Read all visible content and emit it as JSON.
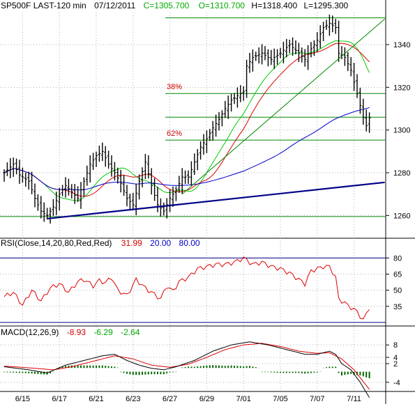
{
  "colors": {
    "price_bar": "#000000",
    "ma_fast": "#00cc00",
    "ma_mid": "#dd0000",
    "ma_slow": "#0000cc",
    "trend_up": "#000088",
    "fib_line": "#008800",
    "grid": "#b0b0b0",
    "rsi_line": "#dd0000",
    "rsi_ref": "#000088",
    "macd_line": "#000000",
    "macd_signal": "#dd0000",
    "macd_hist": "#006600",
    "header_c": "#00aa00",
    "header_o": "#00aa00",
    "header_rsi_val": "#cc0000",
    "header_rsi_ref": "#0000cc",
    "header_macd_neg": "#cc0000"
  },
  "header": {
    "symbol_label": "SP500F LAST-120 min",
    "date": "07/12/2011",
    "close_label": "C=1305.700",
    "open_label": "O=1310.700",
    "high_label": "H=1318.400",
    "low_label": "L=1295.300"
  },
  "chart_data": [
    {
      "type": "bar",
      "panel": "price",
      "title": "",
      "ylim": [
        1250,
        1355
      ],
      "yticks": [
        "1340",
        "1320",
        "1300",
        "1280",
        "1260"
      ],
      "ytick_values": [
        1340,
        1320,
        1300,
        1280,
        1260
      ],
      "xticks": [
        "6/15",
        "6/17",
        "6/21",
        "6/23",
        "6/27",
        "6/29",
        "7/01",
        "7/05",
        "7/07",
        "7/11"
      ],
      "xtick_index": [
        6,
        18,
        30,
        42,
        54,
        66,
        78,
        90,
        102,
        114
      ],
      "bar_count": 120,
      "anchors_close": [
        [
          0,
          1280
        ],
        [
          3,
          1284
        ],
        [
          5,
          1279
        ],
        [
          8,
          1276
        ],
        [
          10,
          1268
        ],
        [
          12,
          1262
        ],
        [
          14,
          1260
        ],
        [
          16,
          1264
        ],
        [
          18,
          1270
        ],
        [
          20,
          1274
        ],
        [
          22,
          1271
        ],
        [
          24,
          1268
        ],
        [
          26,
          1276
        ],
        [
          28,
          1284
        ],
        [
          30,
          1288
        ],
        [
          32,
          1290
        ],
        [
          34,
          1284
        ],
        [
          36,
          1280
        ],
        [
          38,
          1275
        ],
        [
          40,
          1268
        ],
        [
          42,
          1265
        ],
        [
          44,
          1276
        ],
        [
          46,
          1285
        ],
        [
          48,
          1274
        ],
        [
          50,
          1265
        ],
        [
          52,
          1262
        ],
        [
          54,
          1268
        ],
        [
          56,
          1272
        ],
        [
          58,
          1278
        ],
        [
          60,
          1278
        ],
        [
          62,
          1285
        ],
        [
          64,
          1292
        ],
        [
          66,
          1296
        ],
        [
          68,
          1301
        ],
        [
          70,
          1305
        ],
        [
          72,
          1310
        ],
        [
          74,
          1314
        ],
        [
          76,
          1316
        ],
        [
          78,
          1318
        ],
        [
          79,
          1330
        ],
        [
          81,
          1334
        ],
        [
          84,
          1336
        ],
        [
          87,
          1333
        ],
        [
          90,
          1336
        ],
        [
          93,
          1340
        ],
        [
          96,
          1336
        ],
        [
          98,
          1333
        ],
        [
          100,
          1338
        ],
        [
          102,
          1342
        ],
        [
          104,
          1348
        ],
        [
          106,
          1350
        ],
        [
          107,
          1349
        ],
        [
          108,
          1348
        ],
        [
          109,
          1336
        ],
        [
          111,
          1334
        ],
        [
          113,
          1328
        ],
        [
          115,
          1317
        ],
        [
          117,
          1306
        ],
        [
          118,
          1302
        ],
        [
          119,
          1305.7
        ]
      ],
      "ma_periods": [
        14,
        20,
        80
      ],
      "trendline": {
        "start": [
          14,
          1258.5
        ],
        "end": [
          124,
          1275.5
        ]
      },
      "fib_levels": [
        {
          "label": "",
          "value": 1352.5
        },
        {
          "label": "38%",
          "value": 1317.1
        },
        {
          "label": "",
          "value": 1306.0
        },
        {
          "label": "62%",
          "value": 1295.3
        },
        {
          "label": "",
          "value": 1259.5
        }
      ]
    },
    {
      "type": "line",
      "panel": "rsi",
      "title": "RSI(Close,14,20,80,Red,Red)",
      "values_header": [
        "31.99",
        "20.00",
        "80.00"
      ],
      "ylim": [
        18,
        88
      ],
      "yticks": [
        "80",
        "65",
        "50",
        "35"
      ],
      "ytick_values": [
        80,
        65,
        50,
        35
      ],
      "ref_lines": [
        80,
        20
      ],
      "anchors": [
        [
          0,
          44
        ],
        [
          3,
          48
        ],
        [
          6,
          36
        ],
        [
          9,
          50
        ],
        [
          12,
          40
        ],
        [
          15,
          52
        ],
        [
          18,
          56
        ],
        [
          21,
          48
        ],
        [
          24,
          58
        ],
        [
          26,
          60
        ],
        [
          29,
          54
        ],
        [
          31,
          59
        ],
        [
          33,
          57
        ],
        [
          35,
          62
        ],
        [
          37,
          50
        ],
        [
          40,
          45
        ],
        [
          43,
          60
        ],
        [
          46,
          52
        ],
        [
          49,
          46
        ],
        [
          51,
          42
        ],
        [
          53,
          54
        ],
        [
          55,
          49
        ],
        [
          57,
          58
        ],
        [
          60,
          62
        ],
        [
          63,
          70
        ],
        [
          66,
          72
        ],
        [
          69,
          74
        ],
        [
          72,
          74
        ],
        [
          75,
          76
        ],
        [
          78,
          80
        ],
        [
          81,
          74
        ],
        [
          84,
          76
        ],
        [
          87,
          72
        ],
        [
          90,
          70
        ],
        [
          93,
          66
        ],
        [
          96,
          60
        ],
        [
          98,
          56
        ],
        [
          100,
          68
        ],
        [
          102,
          70
        ],
        [
          104,
          72
        ],
        [
          106,
          72
        ],
        [
          108,
          62
        ],
        [
          109,
          42
        ],
        [
          111,
          38
        ],
        [
          113,
          34
        ],
        [
          115,
          30
        ],
        [
          117,
          22
        ],
        [
          118,
          28
        ],
        [
          119,
          31.99
        ]
      ]
    },
    {
      "type": "line",
      "panel": "macd",
      "title": "MACD(12,26,9)",
      "values_header": [
        "-8.93",
        "-6.29",
        "-2.64"
      ],
      "ylim": [
        -6.5,
        10.5
      ],
      "yticks": [
        "8",
        "4",
        "2",
        "-4"
      ],
      "ytick_values": [
        8,
        4,
        2,
        -4
      ],
      "macd_anchors": [
        [
          0,
          1
        ],
        [
          8,
          0
        ],
        [
          14,
          -1
        ],
        [
          20,
          1.5
        ],
        [
          26,
          3
        ],
        [
          32,
          4.5
        ],
        [
          36,
          5
        ],
        [
          40,
          3
        ],
        [
          44,
          1.5
        ],
        [
          48,
          0.5
        ],
        [
          52,
          0
        ],
        [
          56,
          1
        ],
        [
          62,
          3
        ],
        [
          68,
          6
        ],
        [
          74,
          8
        ],
        [
          80,
          9
        ],
        [
          86,
          8
        ],
        [
          92,
          6.5
        ],
        [
          98,
          5
        ],
        [
          102,
          5
        ],
        [
          106,
          6
        ],
        [
          108,
          5
        ],
        [
          110,
          2
        ],
        [
          113,
          0
        ],
        [
          116,
          -4
        ],
        [
          119,
          -8.93
        ]
      ],
      "signal_anchors": [
        [
          0,
          1.2
        ],
        [
          10,
          0.5
        ],
        [
          16,
          0
        ],
        [
          22,
          1
        ],
        [
          30,
          3
        ],
        [
          36,
          4.5
        ],
        [
          42,
          3.5
        ],
        [
          48,
          1.5
        ],
        [
          54,
          0.8
        ],
        [
          60,
          1.8
        ],
        [
          66,
          4
        ],
        [
          72,
          6.5
        ],
        [
          78,
          8
        ],
        [
          84,
          8.5
        ],
        [
          90,
          7.5
        ],
        [
          96,
          6
        ],
        [
          102,
          5.3
        ],
        [
          106,
          5.5
        ],
        [
          110,
          3.5
        ],
        [
          114,
          0
        ],
        [
          119,
          -6.29
        ]
      ]
    }
  ]
}
